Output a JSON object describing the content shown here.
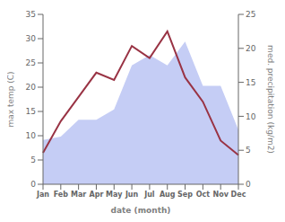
{
  "chart_data": {
    "type": "line",
    "xlabel": "date (month)",
    "ylabel": "max temp (C)",
    "y2label": "med. precipitation (kg/m2)",
    "categories": [
      "Jan",
      "Feb",
      "Mar",
      "Apr",
      "May",
      "Jun",
      "Jul",
      "Aug",
      "Sep",
      "Oct",
      "Nov",
      "Dec"
    ],
    "series": [
      {
        "type": "area",
        "axis": "y2",
        "color": "#c5cdf5",
        "values": [
          6.5,
          7.0,
          9.5,
          9.5,
          11.0,
          17.5,
          19.0,
          17.5,
          21.0,
          14.5,
          14.5,
          8.0
        ]
      },
      {
        "type": "line",
        "color": "#993344",
        "values": [
          6.5,
          13.0,
          18.0,
          23.0,
          21.5,
          28.5,
          26.0,
          31.5,
          22.0,
          17.0,
          9.0,
          6.0
        ]
      }
    ],
    "ylim": [
      0,
      35
    ],
    "yticks": [
      0,
      5,
      10,
      15,
      20,
      25,
      30,
      35
    ],
    "y2lim": [
      0,
      25
    ],
    "y2ticks": [
      0,
      5,
      10,
      15,
      20,
      25
    ],
    "grid": false
  }
}
